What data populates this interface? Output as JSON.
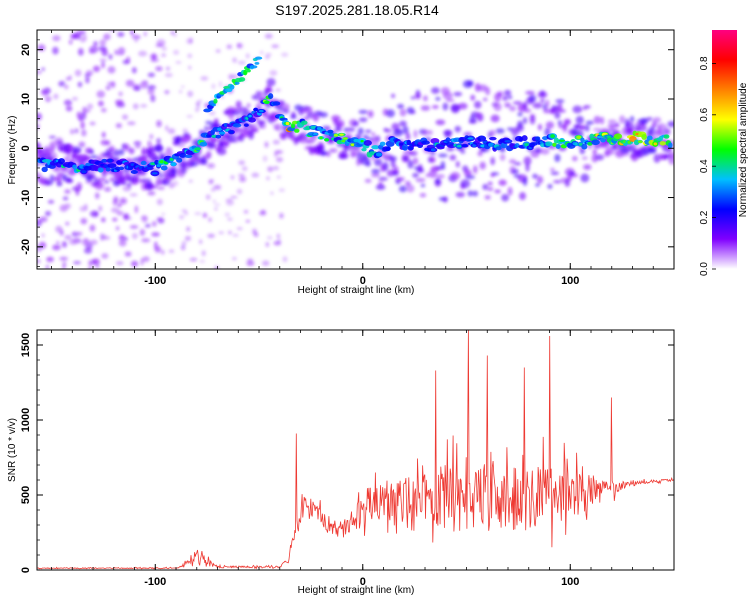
{
  "title": "S197.2025.281.18.05.R14",
  "chart_data": [
    {
      "type": "heatmap",
      "title": "S197.2025.281.18.05.R14",
      "xlabel": "Height of straight line (km)",
      "ylabel": "Frequency (Hz)",
      "xlim": [
        -157,
        150
      ],
      "ylim": [
        -24.5,
        24
      ],
      "x_ticks": [
        -100,
        0,
        100
      ],
      "y_ticks": [
        -20,
        -10,
        0,
        10,
        20
      ],
      "colorbar": {
        "label": "Normalized spectral amplitude",
        "range": [
          0,
          0.93
        ],
        "ticks": [
          0.0,
          0.2,
          0.4,
          0.6,
          0.8
        ],
        "tick_labels": [
          "0.0",
          "0.2",
          "0.4",
          "0.6",
          "0.8"
        ],
        "colors": [
          "#ffffff",
          "#8000ff",
          "#0000ff",
          "#00c0ff",
          "#00ff00",
          "#ffff00",
          "#ff8000",
          "#ff0000",
          "#ff0080"
        ]
      },
      "ridge": [
        {
          "x": -155,
          "f": -3.5,
          "a": 0.5
        },
        {
          "x": -145,
          "f": -3.5,
          "a": 0.45
        },
        {
          "x": -135,
          "f": -4.0,
          "a": 0.4
        },
        {
          "x": -125,
          "f": -3.5,
          "a": 0.38
        },
        {
          "x": -115,
          "f": -3.5,
          "a": 0.36
        },
        {
          "x": -105,
          "f": -4.0,
          "a": 0.38
        },
        {
          "x": -100,
          "f": -4.0,
          "a": 0.4
        },
        {
          "x": -95,
          "f": -3.0,
          "a": 0.45
        },
        {
          "x": -90,
          "f": -2.0,
          "a": 0.45
        },
        {
          "x": -85,
          "f": -1.0,
          "a": 0.4
        },
        {
          "x": -80,
          "f": 0.5,
          "a": 0.5
        },
        {
          "x": -75,
          "f": 2.0,
          "a": 0.4
        },
        {
          "x": -70,
          "f": 3.0,
          "a": 0.38
        },
        {
          "x": -65,
          "f": 4.0,
          "a": 0.35
        },
        {
          "x": -60,
          "f": 5.0,
          "a": 0.36
        },
        {
          "x": -55,
          "f": 6.0,
          "a": 0.4
        },
        {
          "x": -50,
          "f": 8.0,
          "a": 0.4
        },
        {
          "x": -45,
          "f": 10.0,
          "a": 0.6
        },
        {
          "x": -40,
          "f": 7.0,
          "a": 0.35
        },
        {
          "x": -35,
          "f": 4.0,
          "a": 0.7
        },
        {
          "x": -30,
          "f": 5.0,
          "a": 0.55
        },
        {
          "x": -25,
          "f": 3.5,
          "a": 0.45
        },
        {
          "x": -20,
          "f": 3.0,
          "a": 0.5
        },
        {
          "x": -15,
          "f": 2.5,
          "a": 0.45
        },
        {
          "x": -10,
          "f": 2.0,
          "a": 0.55
        },
        {
          "x": -5,
          "f": 1.5,
          "a": 0.5
        },
        {
          "x": 0,
          "f": 1.0,
          "a": 0.45
        },
        {
          "x": 5,
          "f": -1.0,
          "a": 0.5
        },
        {
          "x": 10,
          "f": 0.0,
          "a": 0.4
        },
        {
          "x": 15,
          "f": 2.0,
          "a": 0.45
        },
        {
          "x": 20,
          "f": 1.0,
          "a": 0.35
        },
        {
          "x": 30,
          "f": 0.5,
          "a": 0.35
        },
        {
          "x": 40,
          "f": 1.0,
          "a": 0.38
        },
        {
          "x": 50,
          "f": 1.5,
          "a": 0.35
        },
        {
          "x": 60,
          "f": 1.0,
          "a": 0.38
        },
        {
          "x": 70,
          "f": 1.0,
          "a": 0.35
        },
        {
          "x": 80,
          "f": 1.0,
          "a": 0.4
        },
        {
          "x": 90,
          "f": 1.5,
          "a": 0.45
        },
        {
          "x": 100,
          "f": 1.0,
          "a": 0.55
        },
        {
          "x": 110,
          "f": 1.5,
          "a": 0.6
        },
        {
          "x": 115,
          "f": 2.0,
          "a": 0.55
        },
        {
          "x": 120,
          "f": 1.5,
          "a": 0.6
        },
        {
          "x": 125,
          "f": 2.0,
          "a": 0.7
        },
        {
          "x": 130,
          "f": 2.0,
          "a": 0.9
        },
        {
          "x": 135,
          "f": 2.0,
          "a": 0.75
        },
        {
          "x": 140,
          "f": 2.0,
          "a": 0.7
        },
        {
          "x": 147,
          "f": 1.5,
          "a": 0.7
        }
      ],
      "secondary_ridge": [
        {
          "x": -75,
          "f": 8.0,
          "a": 0.4
        },
        {
          "x": -70,
          "f": 10.0,
          "a": 0.4
        },
        {
          "x": -65,
          "f": 12.0,
          "a": 0.5
        },
        {
          "x": -60,
          "f": 14.0,
          "a": 0.45
        },
        {
          "x": -55,
          "f": 16.0,
          "a": 0.4
        },
        {
          "x": -50,
          "f": 18.0,
          "a": 0.35
        }
      ]
    },
    {
      "type": "line",
      "xlabel": "Height of straight line (km)",
      "ylabel": "SNR (10 * v/v)",
      "xlim": [
        -157,
        150
      ],
      "ylim": [
        0,
        1600
      ],
      "x_ticks": [
        -100,
        0,
        100
      ],
      "y_ticks": [
        0,
        500,
        1000,
        1500
      ],
      "color": "#ee3a33",
      "envelope": [
        {
          "x": -157,
          "base": 12,
          "amp": 10
        },
        {
          "x": -90,
          "base": 12,
          "amp": 12
        },
        {
          "x": -85,
          "base": 40,
          "amp": 60
        },
        {
          "x": -80,
          "base": 80,
          "amp": 140
        },
        {
          "x": -75,
          "base": 60,
          "amp": 90
        },
        {
          "x": -70,
          "base": 20,
          "amp": 25
        },
        {
          "x": -40,
          "base": 20,
          "amp": 20
        },
        {
          "x": -36,
          "base": 60,
          "amp": 80
        },
        {
          "x": -32,
          "base": 300,
          "amp": 300
        },
        {
          "x": -28,
          "base": 420,
          "amp": 300
        },
        {
          "x": -22,
          "base": 400,
          "amp": 220
        },
        {
          "x": -18,
          "base": 300,
          "amp": 150
        },
        {
          "x": -12,
          "base": 250,
          "amp": 120
        },
        {
          "x": -5,
          "base": 300,
          "amp": 200
        },
        {
          "x": 0,
          "base": 400,
          "amp": 450
        },
        {
          "x": 10,
          "base": 450,
          "amp": 500
        },
        {
          "x": 20,
          "base": 450,
          "amp": 600
        },
        {
          "x": 30,
          "base": 450,
          "amp": 700
        },
        {
          "x": 40,
          "base": 470,
          "amp": 800
        },
        {
          "x": 50,
          "base": 480,
          "amp": 900
        },
        {
          "x": 60,
          "base": 470,
          "amp": 800
        },
        {
          "x": 70,
          "base": 460,
          "amp": 750
        },
        {
          "x": 80,
          "base": 460,
          "amp": 800
        },
        {
          "x": 90,
          "base": 470,
          "amp": 750
        },
        {
          "x": 100,
          "base": 480,
          "amp": 650
        },
        {
          "x": 110,
          "base": 500,
          "amp": 450
        },
        {
          "x": 118,
          "base": 520,
          "amp": 250
        },
        {
          "x": 125,
          "base": 560,
          "amp": 90
        },
        {
          "x": 130,
          "base": 580,
          "amp": 45
        },
        {
          "x": 150,
          "base": 600,
          "amp": 30
        }
      ],
      "peaks": [
        {
          "x": -32,
          "y": 910
        },
        {
          "x": 35,
          "y": 1330
        },
        {
          "x": 51,
          "y": 1600
        },
        {
          "x": 60,
          "y": 1430
        },
        {
          "x": 78,
          "y": 1350
        },
        {
          "x": 90,
          "y": 1560
        },
        {
          "x": 120,
          "y": 1150
        }
      ]
    }
  ]
}
